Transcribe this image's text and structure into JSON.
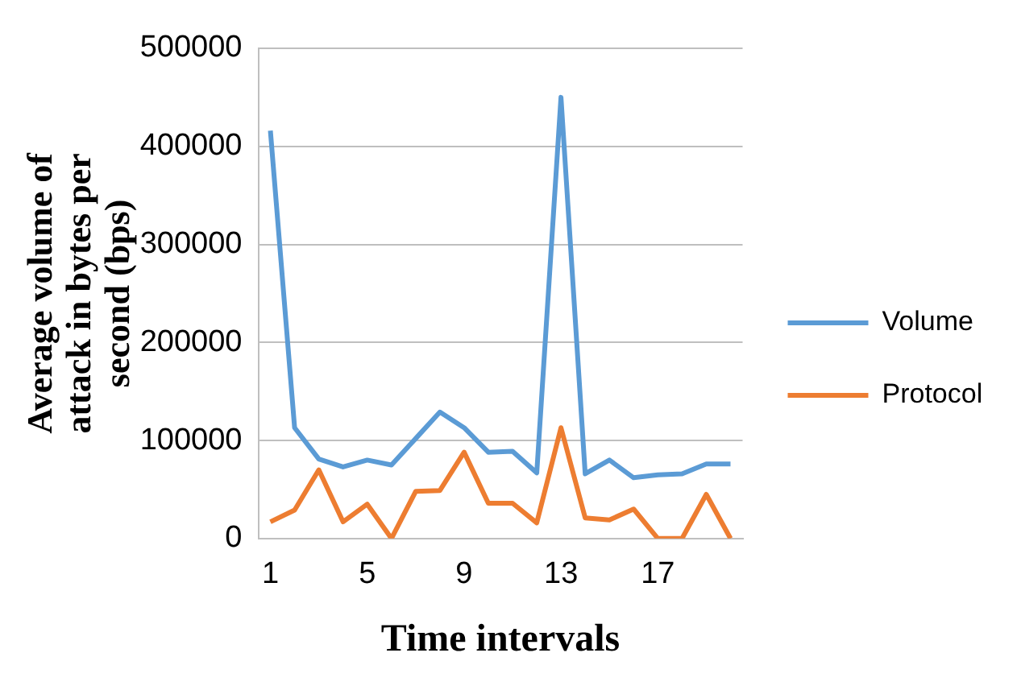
{
  "chart_data": {
    "type": "line",
    "xlabel": "Time intervals",
    "ylabel": "Average volume of attack in bytes per second (bps)",
    "categories": [
      "1",
      null,
      null,
      null,
      "5",
      null,
      null,
      null,
      "9",
      null,
      null,
      null,
      "13",
      null,
      null,
      null,
      "17",
      null,
      null,
      null
    ],
    "series": [
      {
        "name": "Volume",
        "color": "#5b9bd5",
        "values": [
          416000,
          113000,
          81000,
          73000,
          80000,
          75000,
          102000,
          129000,
          113000,
          88000,
          89000,
          67000,
          450000,
          66000,
          80000,
          62000,
          65000,
          66000,
          76000,
          76000
        ]
      },
      {
        "name": "Protocol",
        "color": "#ed7d31",
        "values": [
          17000,
          29000,
          70000,
          17000,
          35000,
          0,
          48000,
          49000,
          88000,
          36000,
          36000,
          16000,
          113000,
          21000,
          19000,
          30000,
          0,
          0,
          45000,
          0
        ]
      }
    ],
    "ylim": [
      0,
      500000
    ],
    "yticks": [
      0,
      100000,
      200000,
      300000,
      400000,
      500000
    ],
    "grid": "y",
    "legend": "right",
    "marker": "none",
    "line_style": "solid"
  }
}
